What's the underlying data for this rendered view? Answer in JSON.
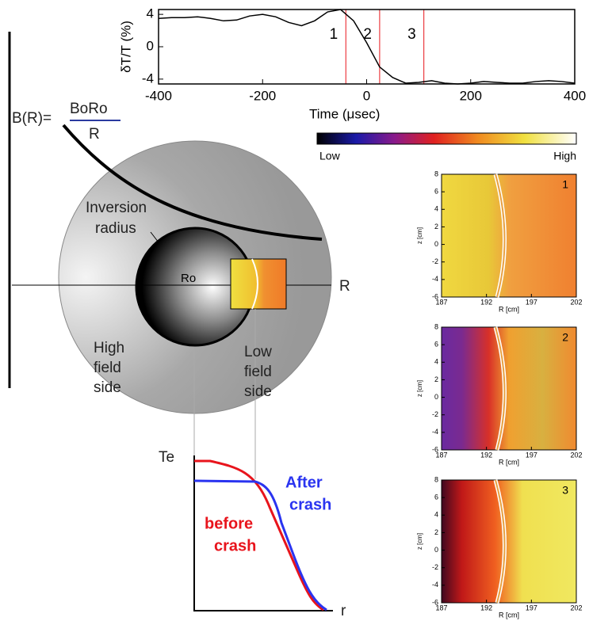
{
  "chart_data": [
    {
      "type": "line",
      "xlabel": "Time (μsec)",
      "ylabel": "δT/T (%)",
      "x": [
        -400,
        -375,
        -350,
        -325,
        -300,
        -275,
        -250,
        -225,
        -200,
        -175,
        -150,
        -125,
        -100,
        -75,
        -50,
        -25,
        0,
        25,
        50,
        75,
        100,
        125,
        150,
        175,
        200,
        225,
        250,
        275,
        300,
        325,
        350,
        375,
        400
      ],
      "series": [
        {
          "color": "#000000",
          "values": [
            3.5,
            3.6,
            3.6,
            3.7,
            3.5,
            3.2,
            3.3,
            3.8,
            4.0,
            3.7,
            3.0,
            2.6,
            3.2,
            4.3,
            4.6,
            3.2,
            0.5,
            -2.5,
            -3.8,
            -4.5,
            -4.4,
            -4.2,
            -4.5,
            -4.6,
            -4.5,
            -4.3,
            -4.4,
            -4.5,
            -4.5,
            -4.3,
            -4.2,
            -4.3,
            -4.5
          ]
        }
      ],
      "xlim": [
        -400,
        400
      ],
      "xticks": [
        -400,
        -200,
        0,
        200,
        400
      ],
      "ylim": [
        -4.6,
        4.6
      ],
      "yticks": [
        -4,
        0,
        4
      ],
      "markers": [
        {
          "x": -40,
          "label": "1",
          "color": "#e8141c"
        },
        {
          "x": 25,
          "label": "2",
          "color": "#e8141c"
        },
        {
          "x": 110,
          "label": "3",
          "color": "#e8141c"
        }
      ]
    },
    {
      "type": "image",
      "label": "1",
      "xlabel": "R [cm]",
      "ylabel": "z [cm]",
      "xlim": [
        187,
        202
      ],
      "xticks": [
        187,
        192,
        197,
        202
      ],
      "ylim": [
        -6,
        8
      ],
      "yticks": [
        -6,
        -4,
        -2,
        0,
        2,
        4,
        6,
        8
      ]
    },
    {
      "type": "image",
      "label": "2",
      "xlabel": "R [cm]",
      "ylabel": "z [cm]",
      "xlim": [
        187,
        202
      ],
      "xticks": [
        187,
        192,
        197,
        202
      ],
      "ylim": [
        -6,
        8
      ],
      "yticks": [
        -6,
        -4,
        -2,
        0,
        2,
        4,
        6,
        8
      ]
    },
    {
      "type": "image",
      "label": "3",
      "xlabel": "R [cm]",
      "ylabel": "z [cm]",
      "xlim": [
        187,
        202
      ],
      "xticks": [
        187,
        192,
        197,
        202
      ],
      "ylim": [
        -6,
        8
      ],
      "yticks": [
        -6,
        -4,
        -2,
        0,
        2,
        4,
        6,
        8
      ]
    }
  ],
  "colorbar": {
    "low": "Low",
    "high": "High"
  },
  "diagram": {
    "formula_lhs": "B(R)=",
    "formula_num": "BoRo",
    "formula_den": "R",
    "inversion": [
      "Inversion",
      "radius"
    ],
    "center": "Ro",
    "axis": "R",
    "high_side": [
      "High",
      "field",
      "side"
    ],
    "low_side": [
      "Low",
      "field",
      "side"
    ],
    "te": "Te",
    "r": "r",
    "before": [
      "before",
      "crash"
    ],
    "after": [
      "After",
      "crash"
    ]
  }
}
